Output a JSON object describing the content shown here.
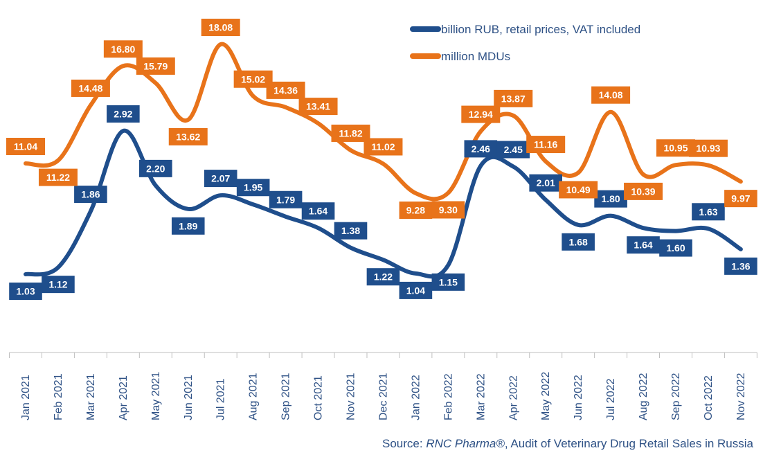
{
  "chart_data": {
    "type": "line",
    "categories": [
      "Jan 2021",
      "Feb 2021",
      "Mar 2021",
      "Apr 2021",
      "May 2021",
      "Jun 2021",
      "Jul 2021",
      "Aug 2021",
      "Sep 2021",
      "Oct 2021",
      "Nov 2021",
      "Dec 2021",
      "Jan 2022",
      "Feb 2022",
      "Mar 2022",
      "Apr 2022",
      "May 2022",
      "Jun 2022",
      "Jul 2022",
      "Aug 2022",
      "Sep 2022",
      "Oct 2022",
      "Nov 2022"
    ],
    "series": [
      {
        "name": "billion RUB, retail prices, VAT included",
        "color": "#1f4e8c",
        "values": [
          1.03,
          1.12,
          1.86,
          2.92,
          2.2,
          1.89,
          2.07,
          1.95,
          1.79,
          1.64,
          1.38,
          1.22,
          1.04,
          1.15,
          2.46,
          2.45,
          2.01,
          1.68,
          1.8,
          1.64,
          1.6,
          1.63,
          1.36
        ],
        "labels": [
          "1.03",
          "1.12",
          "1.86",
          "2.92",
          "2.20",
          "1.89",
          "2.07",
          "1.95",
          "1.79",
          "1.64",
          "1.38",
          "1.22",
          "1.04",
          "1.15",
          "2.46",
          "2.45",
          "2.01",
          "1.68",
          "1.80",
          "1.64",
          "1.60",
          "1.63",
          "1.36"
        ],
        "label_side": [
          "below",
          "below",
          "above",
          "above",
          "above",
          "below",
          "above",
          "above",
          "above",
          "above",
          "above",
          "below",
          "below",
          "below",
          "above",
          "above",
          "above",
          "below",
          "above",
          "below",
          "below",
          "above",
          "below"
        ]
      },
      {
        "name": "million MDUs",
        "color": "#e8731a",
        "values": [
          11.04,
          11.22,
          14.48,
          16.8,
          15.79,
          13.62,
          18.08,
          15.02,
          14.36,
          13.41,
          11.82,
          11.02,
          9.28,
          9.3,
          12.94,
          13.87,
          11.16,
          10.49,
          14.08,
          10.39,
          10.95,
          10.93,
          9.97
        ],
        "labels": [
          "11.04",
          "11.22",
          "14.48",
          "16.80",
          "15.79",
          "13.62",
          "18.08",
          "15.02",
          "14.36",
          "13.41",
          "11.82",
          "11.02",
          "9.28",
          "9.30",
          "12.94",
          "13.87",
          "11.16",
          "10.49",
          "14.08",
          "10.39",
          "10.95",
          "10.93",
          "9.97"
        ],
        "label_side": [
          "above",
          "below",
          "above",
          "above",
          "above",
          "below",
          "above",
          "above",
          "above",
          "above",
          "above",
          "above",
          "below",
          "below",
          "above",
          "above",
          "above",
          "below",
          "above",
          "below",
          "above",
          "above",
          "below"
        ]
      }
    ]
  },
  "source": {
    "prefix": "Source: ",
    "brand": "RNC Pharma®",
    "suffix": ", Audit of Veterinary Drug Retail Sales in Russia"
  }
}
